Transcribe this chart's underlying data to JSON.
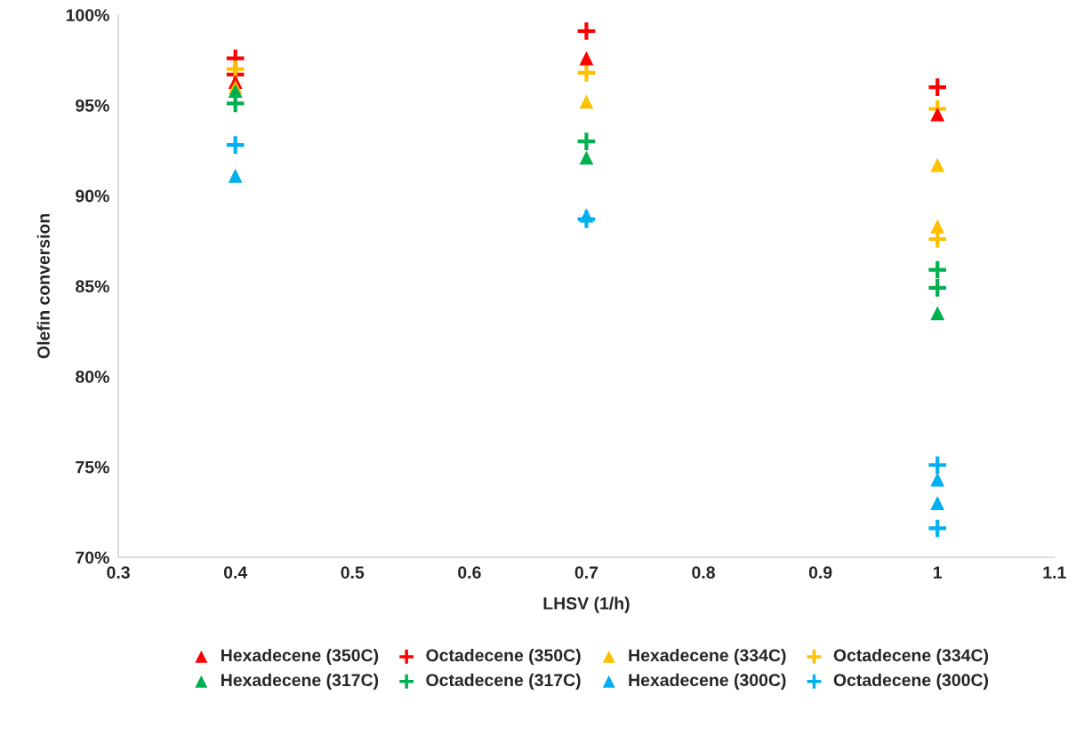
{
  "chart_data": {
    "type": "scatter",
    "xlabel": "LHSV (1/h)",
    "ylabel": "Olefin conversion",
    "xlim": [
      0.3,
      1.1
    ],
    "xticks": [
      0.3,
      0.4,
      0.5,
      0.6,
      0.7,
      0.8,
      0.9,
      1,
      1.1
    ],
    "ylim": [
      70,
      100
    ],
    "yticks": [
      {
        "value": 70,
        "label": "70%"
      },
      {
        "value": 75,
        "label": "75%"
      },
      {
        "value": 80,
        "label": "80%"
      },
      {
        "value": 85,
        "label": "85%"
      },
      {
        "value": 90,
        "label": "90%"
      },
      {
        "value": 95,
        "label": "95%"
      },
      {
        "value": 100,
        "label": "100%"
      }
    ],
    "grid": false,
    "legend": "bottom",
    "series": [
      {
        "name": "Hexadecene (350C)",
        "color": "#ff0000",
        "marker": "triangle",
        "x": [
          0.4,
          0.7,
          1
        ],
        "values": [
          96.3,
          97.6,
          94.5
        ]
      },
      {
        "name": "Octadecene (350C)",
        "color": "#ff0000",
        "marker": "cross",
        "x": [
          0.4,
          0.4,
          0.7,
          1
        ],
        "values": [
          97.6,
          96.7,
          99.1,
          96.0
        ]
      },
      {
        "name": "Hexadecene (334C)",
        "color": "#ffc000",
        "marker": "triangle",
        "x": [
          0.4,
          0.7,
          1,
          1
        ],
        "values": [
          96.0,
          95.2,
          91.7,
          88.3
        ]
      },
      {
        "name": "Octadecene (334C)",
        "color": "#ffc000",
        "marker": "cross",
        "x": [
          0.4,
          0.7,
          1,
          1
        ],
        "values": [
          97.0,
          96.8,
          94.8,
          87.6
        ]
      },
      {
        "name": "Hexadecene (317C)",
        "color": "#00b050",
        "marker": "triangle",
        "x": [
          0.4,
          0.7,
          1
        ],
        "values": [
          95.8,
          92.1,
          83.5
        ]
      },
      {
        "name": "Octadecene (317C)",
        "color": "#00b050",
        "marker": "cross",
        "x": [
          0.4,
          0.7,
          1,
          1
        ],
        "values": [
          95.1,
          93.0,
          85.9,
          84.9
        ]
      },
      {
        "name": "Hexadecene (300C)",
        "color": "#00b0f0",
        "marker": "triangle",
        "x": [
          0.4,
          0.7,
          1,
          1
        ],
        "values": [
          91.1,
          88.9,
          74.3,
          73.0
        ]
      },
      {
        "name": "Octadecene (300C)",
        "color": "#00b0f0",
        "marker": "cross",
        "x": [
          0.4,
          0.7,
          1,
          1
        ],
        "values": [
          92.8,
          88.7,
          75.1,
          71.6
        ]
      }
    ]
  }
}
